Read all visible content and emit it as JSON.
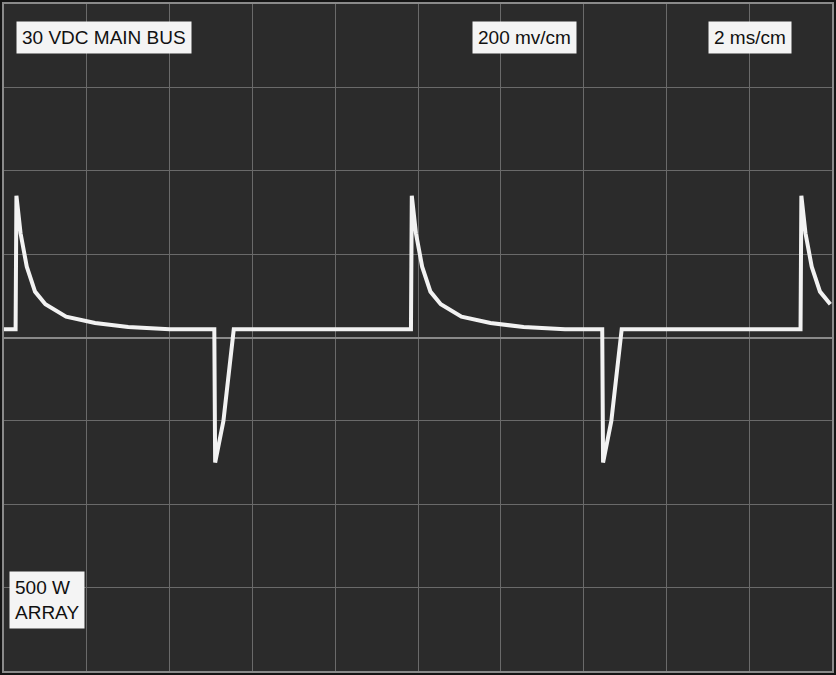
{
  "chart_data": {
    "type": "line",
    "annotations": [
      "30 VDC MAIN BUS",
      "200 mv/cm",
      "2 ms/cm",
      "500 W\nARRAY"
    ],
    "x": [
      0,
      0.28,
      0.3,
      0.4,
      0.55,
      0.75,
      1.0,
      1.5,
      2.2,
      3.0,
      4.0,
      5.08,
      5.1,
      5.3,
      5.55,
      9.83,
      9.85,
      9.95,
      10.1,
      10.3,
      10.55,
      11.05,
      11.75,
      12.55,
      13.55,
      14.45,
      14.47,
      14.67,
      14.92,
      19.24,
      19.26,
      19.36,
      19.51,
      19.71,
      19.96
    ],
    "values": [
      20,
      20,
      340,
      250,
      170,
      110,
      80,
      50,
      35,
      25,
      20,
      20,
      -300,
      -200,
      20,
      20,
      340,
      250,
      170,
      110,
      80,
      50,
      35,
      25,
      20,
      20,
      -300,
      -200,
      20,
      20,
      340,
      250,
      170,
      110,
      80
    ],
    "color": "#f2f2f2",
    "xlim": [
      0,
      20
    ],
    "ylim": [
      -800,
      800
    ],
    "xticks": [
      0,
      2,
      4,
      6,
      8,
      10,
      12,
      14,
      16,
      18,
      20
    ],
    "yticks": [
      -800,
      -600,
      -400,
      -200,
      0,
      200,
      400,
      600,
      800
    ],
    "grid": true,
    "tick_labels": false
  }
}
